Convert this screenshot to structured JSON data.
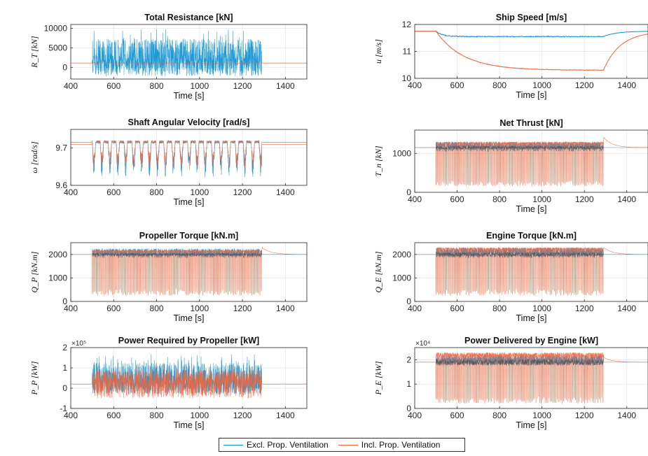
{
  "colors": {
    "excl": "#0a8fd0",
    "incl": "#f0643c",
    "dark": "#4a4a4a"
  },
  "legend": {
    "excl": "Excl. Prop. Ventilation",
    "incl": "Incl. Prop. Ventilation"
  },
  "chart_data": [
    {
      "type": "line",
      "title": "Total Resistance [kN]",
      "xlabel": "Time [s]",
      "ylabel": "R_T [kN]",
      "xlim": [
        400,
        1500
      ],
      "ylim": [
        -3000,
        11000
      ],
      "xticks": [
        400,
        600,
        800,
        1000,
        1200,
        1400
      ],
      "yticks": [
        0,
        5000,
        10000
      ],
      "ytick_labels": [
        "0",
        "5000",
        "10000"
      ],
      "exponent": "",
      "grid": true,
      "series": [
        {
          "name": "Excl. Prop. Ventilation",
          "baseline": 1100,
          "oscillation": [
            500,
            1290
          ],
          "osc_min": -2300,
          "osc_max": 10000,
          "style": "dense"
        },
        {
          "name": "Incl. Prop. Ventilation",
          "baseline": 1100,
          "oscillation": [
            500,
            1290
          ],
          "osc_min": 1000,
          "osc_max": 1300,
          "style": "flat"
        }
      ]
    },
    {
      "type": "line",
      "title": "Ship Speed [m/s]",
      "xlabel": "Time [s]",
      "ylabel": "u [m/s]",
      "xlim": [
        400,
        1500
      ],
      "ylim": [
        10,
        12
      ],
      "xticks": [
        400,
        600,
        800,
        1000,
        1200,
        1400
      ],
      "yticks": [
        10,
        11,
        12
      ],
      "ytick_labels": [
        "10",
        "11",
        "12"
      ],
      "exponent": "",
      "grid": true,
      "series": [
        {
          "name": "Excl. Prop. Ventilation",
          "start": 11.75,
          "settled": 11.55,
          "tau": 30,
          "end": 1290,
          "recover_tau": 60,
          "noise": 0.03
        },
        {
          "name": "Incl. Prop. Ventilation",
          "start": 11.75,
          "settled": 10.3,
          "tau": 130,
          "end": 1290,
          "recover_tau": 80,
          "noise": 0.02
        }
      ]
    },
    {
      "type": "line",
      "title": "Shaft Angular Velocity [rad/s]",
      "xlabel": "Time [s]",
      "ylabel": "ω [rad/s]",
      "xlim": [
        400,
        1500
      ],
      "ylim": [
        9.6,
        9.75
      ],
      "xticks": [
        400,
        600,
        800,
        1000,
        1200,
        1400
      ],
      "yticks": [
        9.6,
        9.7
      ],
      "ytick_labels": [
        "9.6",
        "9.7"
      ],
      "exponent": "",
      "grid": true,
      "series": [
        {
          "name": "Excl. Prop. Ventilation",
          "baseline": 9.715,
          "oscillation": [
            500,
            1290
          ],
          "osc_min": 9.62,
          "osc_max": 9.72,
          "style": "dips"
        },
        {
          "name": "Incl. Prop. Ventilation",
          "baseline": 9.71,
          "oscillation": [
            500,
            1290
          ],
          "osc_min": 9.64,
          "osc_max": 9.72,
          "style": "dips"
        }
      ]
    },
    {
      "type": "line",
      "title": "Net Thrust [kN]",
      "xlabel": "Time [s]",
      "ylabel": "T_n [kN]",
      "xlim": [
        400,
        1500
      ],
      "ylim": [
        0,
        1600
      ],
      "xticks": [
        400,
        600,
        800,
        1000,
        1200,
        1400
      ],
      "yticks": [
        0,
        1000
      ],
      "ytick_labels": [
        "0",
        "1000"
      ],
      "exponent": "",
      "grid": true,
      "series": [
        {
          "name": "Excl. Prop. Ventilation",
          "baseline": 1150,
          "oscillation": [
            500,
            1290
          ],
          "osc_min": 1050,
          "osc_max": 1300,
          "style": "band"
        },
        {
          "name": "Incl. Prop. Ventilation",
          "baseline": 1150,
          "oscillation": [
            500,
            1290
          ],
          "osc_min": 150,
          "osc_max": 1300,
          "style": "spikes",
          "overshoot": 1420
        }
      ]
    },
    {
      "type": "line",
      "title": "Propeller Torque [kN.m]",
      "xlabel": "Time [s]",
      "ylabel": "Q_P [kN.m]",
      "xlim": [
        400,
        1500
      ],
      "ylim": [
        0,
        2500
      ],
      "xticks": [
        400,
        600,
        800,
        1000,
        1200,
        1400
      ],
      "yticks": [
        0,
        1000,
        2000
      ],
      "ytick_labels": [
        "0",
        "1000",
        "2000"
      ],
      "exponent": "",
      "grid": true,
      "series": [
        {
          "name": "Excl. Prop. Ventilation",
          "baseline": 2000,
          "oscillation": [
            500,
            1290
          ],
          "osc_min": 1850,
          "osc_max": 2250,
          "style": "band"
        },
        {
          "name": "Incl. Prop. Ventilation",
          "baseline": 2000,
          "oscillation": [
            500,
            1290
          ],
          "osc_min": 250,
          "osc_max": 2200,
          "style": "spikes",
          "overshoot": 2300
        }
      ]
    },
    {
      "type": "line",
      "title": "Engine Torque [kN.m]",
      "xlabel": "Time [s]",
      "ylabel": "Q_E [kN.m]",
      "xlim": [
        400,
        1500
      ],
      "ylim": [
        0,
        2500
      ],
      "xticks": [
        400,
        600,
        800,
        1000,
        1200,
        1400
      ],
      "yticks": [
        0,
        1000,
        2000
      ],
      "ytick_labels": [
        "0",
        "1000",
        "2000"
      ],
      "exponent": "",
      "grid": true,
      "series": [
        {
          "name": "Excl. Prop. Ventilation",
          "baseline": 2000,
          "oscillation": [
            500,
            1290
          ],
          "osc_min": 1850,
          "osc_max": 2300,
          "style": "band"
        },
        {
          "name": "Incl. Prop. Ventilation",
          "baseline": 2000,
          "oscillation": [
            500,
            1290
          ],
          "osc_min": 250,
          "osc_max": 2300,
          "style": "spikes",
          "overshoot": 2300
        }
      ]
    },
    {
      "type": "line",
      "title": "Power Required by Propeller [kW]",
      "xlabel": "Time [s]",
      "ylabel": "P_P [kW]",
      "xlim": [
        400,
        1500
      ],
      "ylim": [
        -1,
        2
      ],
      "xticks": [
        400,
        600,
        800,
        1000,
        1200,
        1400
      ],
      "yticks": [
        -1,
        0,
        1,
        2
      ],
      "ytick_labels": [
        "-1",
        "0",
        "1",
        "2"
      ],
      "exponent": "×10⁵",
      "grid": true,
      "series": [
        {
          "name": "Excl. Prop. Ventilation",
          "baseline": 0.2,
          "oscillation": [
            500,
            1290
          ],
          "osc_min": -0.3,
          "osc_max": 1.7,
          "style": "dense"
        },
        {
          "name": "Incl. Prop. Ventilation",
          "baseline": 0.2,
          "oscillation": [
            500,
            1290
          ],
          "osc_min": -0.5,
          "osc_max": 1.2,
          "style": "dense"
        }
      ]
    },
    {
      "type": "line",
      "title": "Power Delivered by Engine [kW]",
      "xlabel": "Time [s]",
      "ylabel": "P_E [kW]",
      "xlim": [
        400,
        1500
      ],
      "ylim": [
        0,
        2.5
      ],
      "xticks": [
        400,
        600,
        800,
        1000,
        1200,
        1400
      ],
      "yticks": [
        0,
        1,
        2
      ],
      "ytick_labels": [
        "0",
        "1",
        "2"
      ],
      "exponent": "×10⁴",
      "grid": true,
      "series": [
        {
          "name": "Excl. Prop. Ventilation",
          "baseline": 1.9,
          "oscillation": [
            500,
            1290
          ],
          "osc_min": 1.75,
          "osc_max": 2.2,
          "style": "band"
        },
        {
          "name": "Incl. Prop. Ventilation",
          "baseline": 1.9,
          "oscillation": [
            500,
            1290
          ],
          "osc_min": 0.2,
          "osc_max": 2.3,
          "style": "spikes",
          "overshoot": 2.1
        }
      ]
    }
  ]
}
